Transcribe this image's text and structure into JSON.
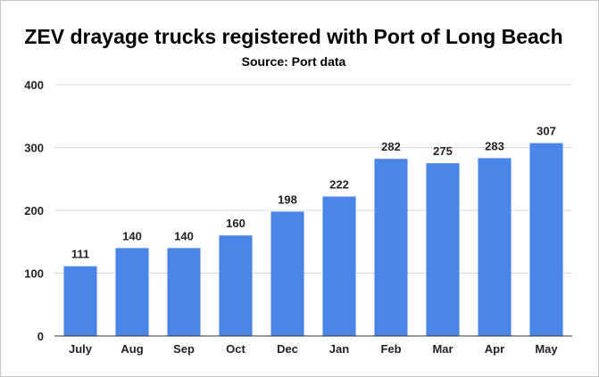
{
  "chart_data": {
    "type": "bar",
    "title": "ZEV drayage trucks registered with Port of Long Beach",
    "subtitle": "Source: Port data",
    "xlabel": "",
    "ylabel": "",
    "categories": [
      "July",
      "Aug",
      "Sep",
      "Oct",
      "Dec",
      "Jan",
      "Feb",
      "Mar",
      "Apr",
      "May"
    ],
    "values": [
      111,
      140,
      140,
      160,
      198,
      222,
      282,
      275,
      283,
      307
    ],
    "ylim": [
      0,
      400
    ],
    "yticks": [
      0,
      100,
      200,
      300,
      400
    ],
    "grid": true,
    "legend": "none",
    "data_labels": true,
    "colors": {
      "bar": "#4a86e8",
      "grid": "#d9d9d9",
      "axis": "#333333"
    }
  }
}
